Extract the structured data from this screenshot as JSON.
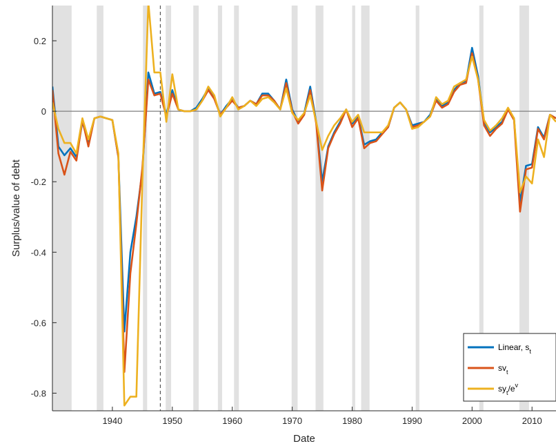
{
  "chart_data": {
    "type": "line",
    "title": "",
    "xlabel": "Date",
    "ylabel": "Surplus/value of debt",
    "xlim": [
      1930,
      2014
    ],
    "ylim": [
      -0.85,
      0.3
    ],
    "x_ticks": [
      1940,
      1950,
      1960,
      1970,
      1980,
      1990,
      2000,
      2010
    ],
    "x_tick_labels": [
      "1940",
      "1950",
      "1960",
      "1970",
      "1980",
      "1990",
      "2000",
      "2010"
    ],
    "y_ticks": [
      0.2,
      0,
      -0.2,
      -0.4,
      -0.6,
      -0.8
    ],
    "y_tick_labels": [
      "0.2",
      "0",
      "-0.2",
      "-0.4",
      "-0.6",
      "-0.8"
    ],
    "grid": false,
    "zero_line": true,
    "vertical_line_x": 1948,
    "recession_bands": [
      [
        1930,
        1933.2
      ],
      [
        1937.4,
        1938.5
      ],
      [
        1945.1,
        1945.8
      ],
      [
        1948.9,
        1949.8
      ],
      [
        1953.5,
        1954.4
      ],
      [
        1957.6,
        1958.3
      ],
      [
        1960.3,
        1961.1
      ],
      [
        1969.9,
        1970.9
      ],
      [
        1973.9,
        1975.2
      ],
      [
        1980.0,
        1980.5
      ],
      [
        1981.5,
        1982.9
      ],
      [
        1990.6,
        1991.2
      ],
      [
        2001.2,
        2001.9
      ],
      [
        2007.9,
        2009.5
      ]
    ],
    "legend_position": "bottom-right",
    "series": [
      {
        "name": "Linear, s_t",
        "legend_main": "Linear, s",
        "legend_sub": "t",
        "legend_sup": "",
        "color": "#0072BD",
        "x": [
          1930,
          1931,
          1932,
          1933,
          1934,
          1935,
          1936,
          1937,
          1938,
          1939,
          1940,
          1941,
          1942,
          1943,
          1944,
          1945,
          1946,
          1947,
          1948,
          1949,
          1950,
          1951,
          1952,
          1953,
          1954,
          1955,
          1956,
          1957,
          1958,
          1959,
          1960,
          1961,
          1962,
          1963,
          1964,
          1965,
          1966,
          1967,
          1968,
          1969,
          1970,
          1971,
          1972,
          1973,
          1974,
          1975,
          1976,
          1977,
          1978,
          1979,
          1980,
          1981,
          1982,
          1983,
          1984,
          1985,
          1986,
          1987,
          1988,
          1989,
          1990,
          1991,
          1992,
          1993,
          1994,
          1995,
          1996,
          1997,
          1998,
          1999,
          2000,
          2001,
          2002,
          2003,
          2004,
          2005,
          2006,
          2007,
          2008,
          2009,
          2010,
          2011,
          2012,
          2013,
          2014
        ],
        "values": [
          0.07,
          -0.1,
          -0.125,
          -0.105,
          -0.13,
          -0.03,
          -0.09,
          -0.02,
          -0.015,
          -0.02,
          -0.025,
          -0.13,
          -0.625,
          -0.4,
          -0.3,
          -0.17,
          0.11,
          0.05,
          0.055,
          -0.01,
          0.06,
          0.005,
          0.0,
          0.0,
          0.01,
          0.035,
          0.065,
          0.04,
          -0.01,
          0.015,
          0.035,
          0.01,
          0.015,
          0.03,
          0.02,
          0.05,
          0.05,
          0.03,
          0.005,
          0.09,
          0.005,
          -0.03,
          -0.005,
          0.07,
          -0.03,
          -0.2,
          -0.1,
          -0.06,
          -0.03,
          0.005,
          -0.035,
          -0.015,
          -0.095,
          -0.085,
          -0.08,
          -0.06,
          -0.045,
          0.01,
          0.025,
          0.005,
          -0.04,
          -0.035,
          -0.03,
          -0.01,
          0.035,
          0.015,
          0.025,
          0.06,
          0.08,
          0.085,
          0.18,
          0.1,
          -0.03,
          -0.06,
          -0.045,
          -0.03,
          0.005,
          -0.02,
          -0.26,
          -0.155,
          -0.15,
          -0.045,
          -0.075,
          -0.01,
          -0.02
        ]
      },
      {
        "name": "sv_t",
        "legend_main": "sv",
        "legend_sub": "t",
        "legend_sup": "",
        "color": "#D95319",
        "x": [
          1930,
          1931,
          1932,
          1933,
          1934,
          1935,
          1936,
          1937,
          1938,
          1939,
          1940,
          1941,
          1942,
          1943,
          1944,
          1945,
          1946,
          1947,
          1948,
          1949,
          1950,
          1951,
          1952,
          1953,
          1954,
          1955,
          1956,
          1957,
          1958,
          1959,
          1960,
          1961,
          1962,
          1963,
          1964,
          1965,
          1966,
          1967,
          1968,
          1969,
          1970,
          1971,
          1972,
          1973,
          1974,
          1975,
          1976,
          1977,
          1978,
          1979,
          1980,
          1981,
          1982,
          1983,
          1984,
          1985,
          1986,
          1987,
          1988,
          1989,
          1990,
          1991,
          1992,
          1993,
          1994,
          1995,
          1996,
          1997,
          1998,
          1999,
          2000,
          2001,
          2002,
          2003,
          2004,
          2005,
          2006,
          2007,
          2008,
          2009,
          2010,
          2011,
          2012,
          2013,
          2014
        ],
        "values": [
          0.06,
          -0.12,
          -0.18,
          -0.115,
          -0.14,
          -0.025,
          -0.1,
          -0.02,
          -0.015,
          -0.02,
          -0.025,
          -0.13,
          -0.74,
          -0.46,
          -0.32,
          -0.16,
          0.09,
          0.045,
          0.05,
          -0.015,
          0.05,
          0.005,
          0.0,
          0.0,
          0.005,
          0.03,
          0.06,
          0.035,
          -0.01,
          0.01,
          0.03,
          0.01,
          0.015,
          0.03,
          0.02,
          0.045,
          0.045,
          0.03,
          0.005,
          0.08,
          0.0,
          -0.035,
          -0.01,
          0.06,
          -0.035,
          -0.225,
          -0.105,
          -0.065,
          -0.035,
          0.005,
          -0.045,
          -0.02,
          -0.105,
          -0.09,
          -0.085,
          -0.065,
          -0.045,
          0.01,
          0.025,
          0.005,
          -0.045,
          -0.04,
          -0.03,
          -0.015,
          0.03,
          0.01,
          0.02,
          0.055,
          0.075,
          0.08,
          0.165,
          0.09,
          -0.04,
          -0.07,
          -0.05,
          -0.035,
          0.005,
          -0.025,
          -0.285,
          -0.165,
          -0.16,
          -0.05,
          -0.08,
          -0.01,
          -0.02
        ]
      },
      {
        "name": "sy_t/e^v",
        "legend_main": "sy",
        "legend_sub": "t",
        "legend_post": "/e",
        "legend_sup": "v",
        "color": "#EDB120",
        "x": [
          1930,
          1931,
          1932,
          1933,
          1934,
          1935,
          1936,
          1937,
          1938,
          1939,
          1940,
          1941,
          1942,
          1943,
          1944,
          1945,
          1946,
          1947,
          1948,
          1949,
          1950,
          1951,
          1952,
          1953,
          1954,
          1955,
          1956,
          1957,
          1958,
          1959,
          1960,
          1961,
          1962,
          1963,
          1964,
          1965,
          1966,
          1967,
          1968,
          1969,
          1970,
          1971,
          1972,
          1973,
          1974,
          1975,
          1976,
          1977,
          1978,
          1979,
          1980,
          1981,
          1982,
          1983,
          1984,
          1985,
          1986,
          1987,
          1988,
          1989,
          1990,
          1991,
          1992,
          1993,
          1994,
          1995,
          1996,
          1997,
          1998,
          1999,
          2000,
          2001,
          2002,
          2003,
          2004,
          2005,
          2006,
          2007,
          2008,
          2009,
          2010,
          2011,
          2012,
          2013,
          2014
        ],
        "values": [
          0.025,
          -0.05,
          -0.09,
          -0.09,
          -0.12,
          -0.02,
          -0.08,
          -0.02,
          -0.015,
          -0.02,
          -0.025,
          -0.12,
          -0.835,
          -0.81,
          -0.81,
          -0.2,
          0.31,
          0.11,
          0.11,
          -0.03,
          0.105,
          0.005,
          0.0,
          0.0,
          0.005,
          0.03,
          0.07,
          0.045,
          -0.015,
          0.01,
          0.04,
          0.005,
          0.015,
          0.03,
          0.015,
          0.035,
          0.04,
          0.025,
          0.005,
          0.065,
          -0.005,
          -0.025,
          -0.005,
          0.045,
          -0.03,
          -0.11,
          -0.07,
          -0.04,
          -0.02,
          0.005,
          -0.03,
          -0.01,
          -0.06,
          -0.06,
          -0.06,
          -0.06,
          -0.04,
          0.01,
          0.025,
          0.005,
          -0.05,
          -0.045,
          -0.03,
          -0.015,
          0.04,
          0.02,
          0.03,
          0.07,
          0.08,
          0.09,
          0.155,
          0.09,
          -0.025,
          -0.055,
          -0.04,
          -0.02,
          0.01,
          -0.02,
          -0.23,
          -0.185,
          -0.205,
          -0.08,
          -0.13,
          -0.01,
          -0.03
        ]
      }
    ]
  }
}
